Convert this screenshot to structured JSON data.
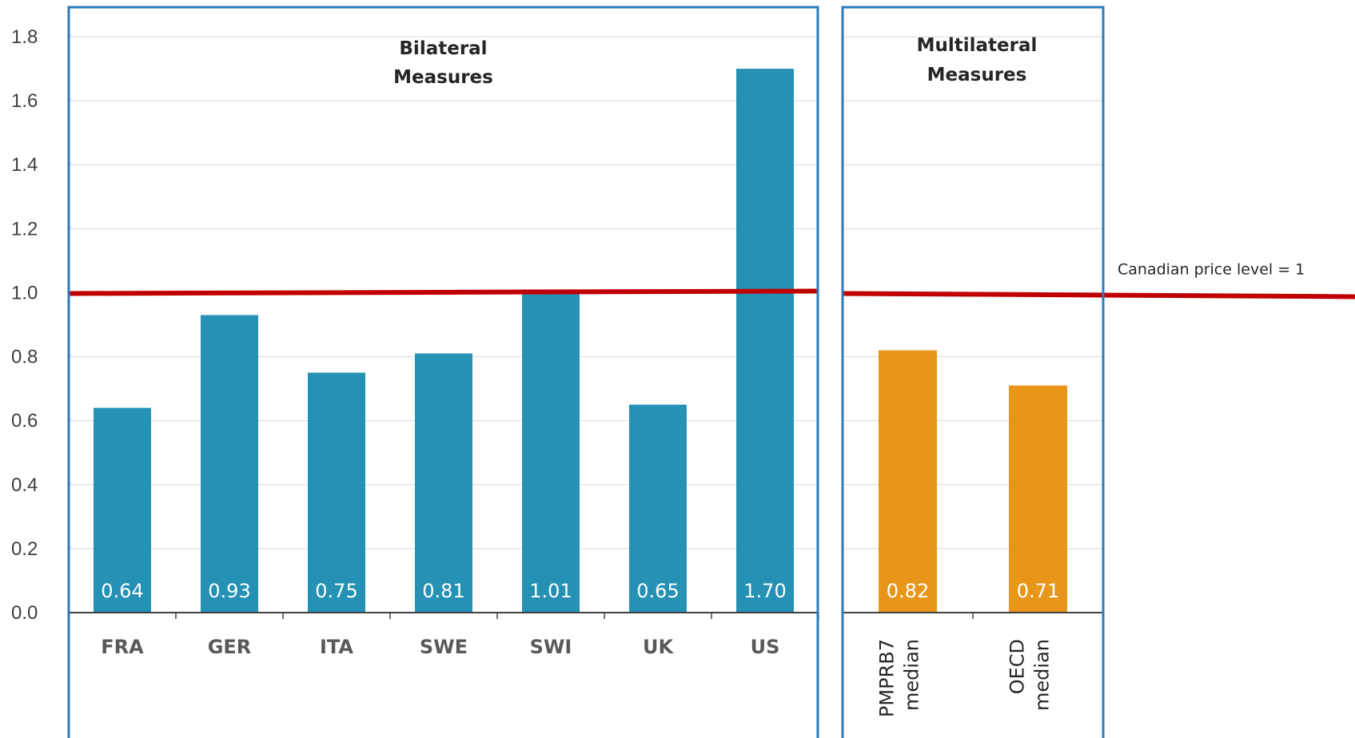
{
  "chart_data": {
    "type": "bar",
    "ylim": [
      0,
      1.8
    ],
    "yticks": [
      "0.0",
      "0.2",
      "0.4",
      "0.6",
      "0.8",
      "1.0",
      "1.2",
      "1.4",
      "1.6",
      "1.8"
    ],
    "grid": true,
    "reference_line": {
      "value": 1.0,
      "label": "Canadian price level = 1",
      "color": "#c00000"
    },
    "panels": [
      {
        "title_lines": [
          "Bilateral",
          "Measures"
        ],
        "color": "#2591b4",
        "categories": [
          "FRA",
          "GER",
          "ITA",
          "SWE",
          "SWI",
          "UK",
          "US"
        ],
        "values": [
          0.64,
          0.93,
          0.75,
          0.81,
          1.01,
          0.65,
          1.7
        ],
        "labels": [
          "0.64",
          "0.93",
          "0.75",
          "0.81",
          "1.01",
          "0.65",
          "1.70"
        ]
      },
      {
        "title_lines": [
          "Multilateral",
          "Measures"
        ],
        "color": "#e8961a",
        "categories": [
          [
            "PMPRB7",
            "median"
          ],
          [
            "OECD",
            "median"
          ]
        ],
        "values": [
          0.82,
          0.71
        ],
        "labels": [
          "0.82",
          "0.71"
        ]
      }
    ]
  }
}
